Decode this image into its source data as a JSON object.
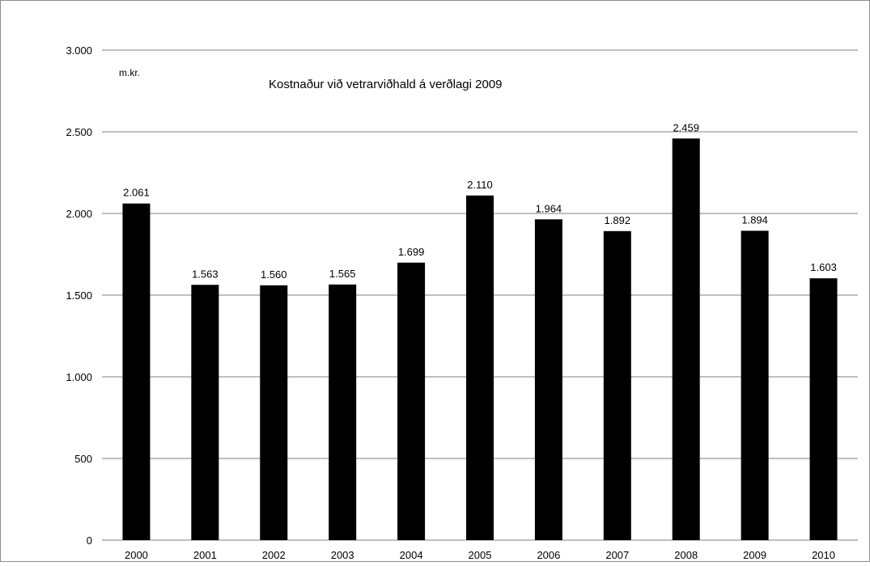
{
  "chart_data": {
    "type": "bar",
    "title": "Kostnaður við vetrarviðhald á verðlagi 2009",
    "unit_label": "m.kr.",
    "categories": [
      "2000",
      "2001",
      "2002",
      "2003",
      "2004",
      "2005",
      "2006",
      "2007",
      "2008",
      "2009",
      "2010"
    ],
    "values": [
      2061,
      1563,
      1560,
      1565,
      1699,
      2110,
      1964,
      1892,
      2459,
      1894,
      1603
    ],
    "value_labels": [
      "2.061",
      "1.563",
      "1.560",
      "1.565",
      "1.699",
      "2.110",
      "1.964",
      "1.892",
      "2.459",
      "1.894",
      "1.603"
    ],
    "y_ticks": [
      0,
      500,
      1000,
      1500,
      2000,
      2500,
      3000
    ],
    "y_tick_labels": [
      "0",
      "500",
      "1.000",
      "1.500",
      "2.000",
      "2.500",
      "3.000"
    ],
    "ylim": [
      0,
      3000
    ],
    "grid": true,
    "bar_color": "#000000",
    "gridline_color": "#808080"
  }
}
